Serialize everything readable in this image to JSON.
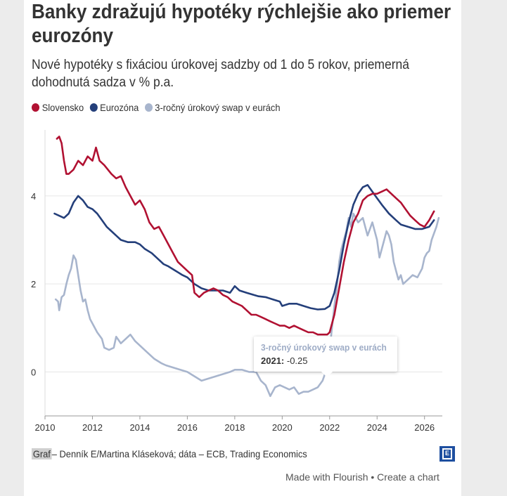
{
  "title": "Banky zdražujú hypotéky rýchlejšie ako priemer eurozóny",
  "subtitle": "Nové hypotéky s fixáciou úrokovej sadzby od 1 do 5 rokov, priemerná dohodnutá sadza v % p.a.",
  "legend": [
    {
      "label": "Slovensko",
      "color": "#b11132"
    },
    {
      "label": "Eurozóna",
      "color": "#243f7a"
    },
    {
      "label": "3-ročný úrokový swap v eurách",
      "color": "#a8b5cd"
    }
  ],
  "footer": {
    "link_text": "Graf",
    "source_text": " – Denník E/Martina Kláseková; dáta – ECB, Trading Economics",
    "flourish_text": "Made with Flourish • Create a chart"
  },
  "tooltip": {
    "title": "3-ročný úrokový swap v eurách",
    "label": "2021:",
    "value": "-0.25"
  },
  "chart_data": {
    "type": "line",
    "xlim": [
      2010,
      2026.75
    ],
    "ylim": [
      -1,
      5.5
    ],
    "xticks": [
      2010,
      2012,
      2014,
      2016,
      2018,
      2020,
      2022,
      2024,
      2026
    ],
    "yticks": [
      0,
      2,
      4
    ],
    "grid": true,
    "legend_position": "top-left",
    "series": [
      {
        "name": "Slovensko",
        "color": "#b11132",
        "points": [
          [
            2010.5,
            5.3
          ],
          [
            2010.6,
            5.35
          ],
          [
            2010.7,
            5.2
          ],
          [
            2010.8,
            4.8
          ],
          [
            2010.9,
            4.5
          ],
          [
            2011.0,
            4.5
          ],
          [
            2011.2,
            4.6
          ],
          [
            2011.4,
            4.8
          ],
          [
            2011.6,
            4.7
          ],
          [
            2011.8,
            4.9
          ],
          [
            2012.0,
            4.8
          ],
          [
            2012.15,
            5.1
          ],
          [
            2012.3,
            4.8
          ],
          [
            2012.5,
            4.7
          ],
          [
            2012.8,
            4.5
          ],
          [
            2013.0,
            4.4
          ],
          [
            2013.2,
            4.45
          ],
          [
            2013.4,
            4.2
          ],
          [
            2013.6,
            4.0
          ],
          [
            2013.8,
            3.8
          ],
          [
            2014.0,
            3.9
          ],
          [
            2014.2,
            3.7
          ],
          [
            2014.4,
            3.4
          ],
          [
            2014.6,
            3.25
          ],
          [
            2014.8,
            3.3
          ],
          [
            2015.0,
            3.1
          ],
          [
            2015.2,
            2.9
          ],
          [
            2015.4,
            2.7
          ],
          [
            2015.6,
            2.5
          ],
          [
            2015.8,
            2.4
          ],
          [
            2016.0,
            2.3
          ],
          [
            2016.2,
            2.2
          ],
          [
            2016.3,
            1.8
          ],
          [
            2016.5,
            1.7
          ],
          [
            2016.7,
            1.8
          ],
          [
            2016.9,
            1.85
          ],
          [
            2017.1,
            1.9
          ],
          [
            2017.3,
            1.85
          ],
          [
            2017.5,
            1.75
          ],
          [
            2017.7,
            1.7
          ],
          [
            2017.9,
            1.6
          ],
          [
            2018.1,
            1.55
          ],
          [
            2018.3,
            1.5
          ],
          [
            2018.5,
            1.4
          ],
          [
            2018.7,
            1.3
          ],
          [
            2018.9,
            1.3
          ],
          [
            2019.1,
            1.25
          ],
          [
            2019.3,
            1.2
          ],
          [
            2019.5,
            1.15
          ],
          [
            2019.7,
            1.1
          ],
          [
            2019.9,
            1.05
          ],
          [
            2020.1,
            1.05
          ],
          [
            2020.3,
            1.0
          ],
          [
            2020.5,
            1.05
          ],
          [
            2020.7,
            1.0
          ],
          [
            2020.9,
            0.95
          ],
          [
            2021.1,
            0.9
          ],
          [
            2021.3,
            0.9
          ],
          [
            2021.5,
            0.85
          ],
          [
            2021.7,
            0.85
          ],
          [
            2021.9,
            0.85
          ],
          [
            2022.0,
            0.9
          ],
          [
            2022.2,
            1.3
          ],
          [
            2022.4,
            1.9
          ],
          [
            2022.6,
            2.5
          ],
          [
            2022.8,
            3.0
          ],
          [
            2023.0,
            3.4
          ],
          [
            2023.2,
            3.6
          ],
          [
            2023.4,
            3.9
          ],
          [
            2023.6,
            4.0
          ],
          [
            2023.8,
            4.05
          ],
          [
            2024.0,
            4.05
          ],
          [
            2024.2,
            4.1
          ],
          [
            2024.4,
            4.15
          ],
          [
            2024.6,
            4.05
          ],
          [
            2024.8,
            3.95
          ],
          [
            2025.0,
            3.85
          ],
          [
            2025.2,
            3.7
          ],
          [
            2025.4,
            3.55
          ],
          [
            2025.6,
            3.45
          ],
          [
            2025.8,
            3.35
          ],
          [
            2026.0,
            3.3
          ],
          [
            2026.2,
            3.45
          ],
          [
            2026.4,
            3.65
          ]
        ]
      },
      {
        "name": "Eurozóna",
        "color": "#243f7a",
        "points": [
          [
            2010.4,
            3.6
          ],
          [
            2010.6,
            3.55
          ],
          [
            2010.8,
            3.5
          ],
          [
            2011.0,
            3.6
          ],
          [
            2011.2,
            3.85
          ],
          [
            2011.4,
            4.0
          ],
          [
            2011.6,
            3.9
          ],
          [
            2011.8,
            3.75
          ],
          [
            2012.0,
            3.7
          ],
          [
            2012.2,
            3.6
          ],
          [
            2012.4,
            3.45
          ],
          [
            2012.6,
            3.3
          ],
          [
            2012.8,
            3.2
          ],
          [
            2013.0,
            3.1
          ],
          [
            2013.2,
            3.0
          ],
          [
            2013.5,
            2.95
          ],
          [
            2013.8,
            2.95
          ],
          [
            2014.0,
            2.9
          ],
          [
            2014.2,
            2.8
          ],
          [
            2014.5,
            2.7
          ],
          [
            2014.8,
            2.55
          ],
          [
            2015.0,
            2.45
          ],
          [
            2015.2,
            2.4
          ],
          [
            2015.5,
            2.3
          ],
          [
            2015.8,
            2.2
          ],
          [
            2016.0,
            2.15
          ],
          [
            2016.3,
            2.0
          ],
          [
            2016.6,
            1.9
          ],
          [
            2016.9,
            1.85
          ],
          [
            2017.2,
            1.85
          ],
          [
            2017.5,
            1.85
          ],
          [
            2017.8,
            1.8
          ],
          [
            2018.0,
            1.95
          ],
          [
            2018.2,
            1.85
          ],
          [
            2018.5,
            1.8
          ],
          [
            2018.8,
            1.75
          ],
          [
            2019.0,
            1.72
          ],
          [
            2019.3,
            1.7
          ],
          [
            2019.6,
            1.65
          ],
          [
            2019.9,
            1.6
          ],
          [
            2020.0,
            1.5
          ],
          [
            2020.3,
            1.55
          ],
          [
            2020.6,
            1.55
          ],
          [
            2020.9,
            1.5
          ],
          [
            2021.2,
            1.45
          ],
          [
            2021.5,
            1.42
          ],
          [
            2021.8,
            1.43
          ],
          [
            2022.0,
            1.5
          ],
          [
            2022.2,
            1.8
          ],
          [
            2022.4,
            2.3
          ],
          [
            2022.6,
            2.9
          ],
          [
            2022.8,
            3.4
          ],
          [
            2023.0,
            3.8
          ],
          [
            2023.2,
            4.05
          ],
          [
            2023.4,
            4.2
          ],
          [
            2023.6,
            4.25
          ],
          [
            2023.8,
            4.1
          ],
          [
            2024.0,
            3.95
          ],
          [
            2024.2,
            3.8
          ],
          [
            2024.5,
            3.6
          ],
          [
            2024.8,
            3.45
          ],
          [
            2025.0,
            3.35
          ],
          [
            2025.3,
            3.3
          ],
          [
            2025.6,
            3.25
          ],
          [
            2025.9,
            3.25
          ],
          [
            2026.2,
            3.3
          ],
          [
            2026.4,
            3.45
          ]
        ]
      },
      {
        "name": "3-ročný úrokový swap v eurách",
        "color": "#a8b5cd",
        "points": [
          [
            2010.45,
            1.65
          ],
          [
            2010.55,
            1.6
          ],
          [
            2010.6,
            1.4
          ],
          [
            2010.7,
            1.7
          ],
          [
            2010.8,
            1.75
          ],
          [
            2010.9,
            2.0
          ],
          [
            2011.0,
            2.2
          ],
          [
            2011.1,
            2.35
          ],
          [
            2011.2,
            2.65
          ],
          [
            2011.3,
            2.55
          ],
          [
            2011.4,
            2.2
          ],
          [
            2011.5,
            1.85
          ],
          [
            2011.6,
            1.6
          ],
          [
            2011.7,
            1.65
          ],
          [
            2011.8,
            1.4
          ],
          [
            2011.9,
            1.2
          ],
          [
            2012.0,
            1.1
          ],
          [
            2012.2,
            0.9
          ],
          [
            2012.4,
            0.75
          ],
          [
            2012.5,
            0.55
          ],
          [
            2012.7,
            0.5
          ],
          [
            2012.9,
            0.55
          ],
          [
            2013.0,
            0.8
          ],
          [
            2013.2,
            0.65
          ],
          [
            2013.4,
            0.75
          ],
          [
            2013.6,
            0.85
          ],
          [
            2013.8,
            0.7
          ],
          [
            2014.0,
            0.6
          ],
          [
            2014.3,
            0.45
          ],
          [
            2014.6,
            0.3
          ],
          [
            2014.9,
            0.2
          ],
          [
            2015.1,
            0.15
          ],
          [
            2015.4,
            0.1
          ],
          [
            2015.7,
            0.05
          ],
          [
            2016.0,
            0.0
          ],
          [
            2016.3,
            -0.1
          ],
          [
            2016.6,
            -0.2
          ],
          [
            2016.9,
            -0.15
          ],
          [
            2017.2,
            -0.1
          ],
          [
            2017.5,
            -0.05
          ],
          [
            2017.8,
            0.0
          ],
          [
            2018.0,
            0.05
          ],
          [
            2018.3,
            0.05
          ],
          [
            2018.6,
            0.0
          ],
          [
            2018.9,
            0.0
          ],
          [
            2019.1,
            -0.2
          ],
          [
            2019.3,
            -0.3
          ],
          [
            2019.5,
            -0.55
          ],
          [
            2019.7,
            -0.35
          ],
          [
            2019.9,
            -0.3
          ],
          [
            2020.1,
            -0.35
          ],
          [
            2020.3,
            -0.4
          ],
          [
            2020.5,
            -0.35
          ],
          [
            2020.7,
            -0.5
          ],
          [
            2020.9,
            -0.45
          ],
          [
            2021.1,
            -0.45
          ],
          [
            2021.3,
            -0.4
          ],
          [
            2021.5,
            -0.35
          ],
          [
            2021.7,
            -0.2
          ],
          [
            2021.9,
            0.1
          ],
          [
            2022.0,
            0.5
          ],
          [
            2022.1,
            1.0
          ],
          [
            2022.2,
            1.5
          ],
          [
            2022.3,
            1.9
          ],
          [
            2022.4,
            2.5
          ],
          [
            2022.5,
            2.8
          ],
          [
            2022.6,
            3.0
          ],
          [
            2022.7,
            3.2
          ],
          [
            2022.8,
            3.5
          ],
          [
            2022.9,
            3.3
          ],
          [
            2023.0,
            3.6
          ],
          [
            2023.2,
            3.4
          ],
          [
            2023.4,
            3.5
          ],
          [
            2023.6,
            3.1
          ],
          [
            2023.8,
            3.4
          ],
          [
            2024.0,
            3.0
          ],
          [
            2024.1,
            2.6
          ],
          [
            2024.2,
            2.8
          ],
          [
            2024.3,
            3.0
          ],
          [
            2024.4,
            3.2
          ],
          [
            2024.5,
            3.1
          ],
          [
            2024.6,
            2.9
          ],
          [
            2024.7,
            2.5
          ],
          [
            2024.8,
            2.3
          ],
          [
            2024.9,
            2.1
          ],
          [
            2025.0,
            2.2
          ],
          [
            2025.1,
            2.0
          ],
          [
            2025.3,
            2.1
          ],
          [
            2025.5,
            2.2
          ],
          [
            2025.7,
            2.15
          ],
          [
            2025.9,
            2.35
          ],
          [
            2026.0,
            2.6
          ],
          [
            2026.1,
            2.7
          ],
          [
            2026.2,
            2.75
          ],
          [
            2026.3,
            3.0
          ],
          [
            2026.5,
            3.3
          ],
          [
            2026.6,
            3.5
          ]
        ]
      }
    ],
    "annotation": {
      "series": "3-ročný úrokový swap v eurách",
      "x": 2021,
      "y": -0.25
    }
  }
}
